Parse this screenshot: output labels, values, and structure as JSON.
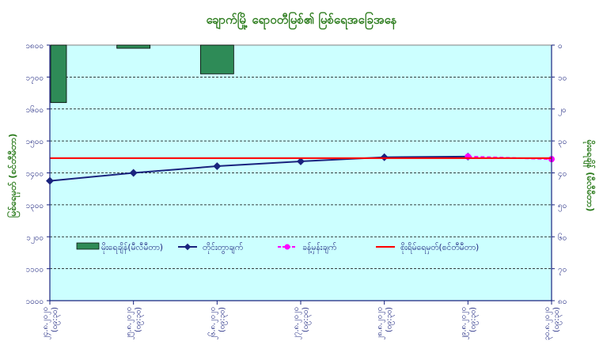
{
  "colors": {
    "plot_background": "#ccffff",
    "bar_fill": "#2e8b57",
    "line_series": "#1a237e",
    "forecast_series": "#ff00ff",
    "danger_level": "#ff0000",
    "title_text": "#2e7d1f"
  },
  "chart_data": {
    "type": "bar",
    "title": "ချောက်မြို့ ရောဝတီမြစ်၏ မြစ်ရေအခြေအနေ",
    "ylabel": "မြစ်ရေမှတ် (စင်တီမီတာ)",
    "y2label": "မိုးရေချိန် (မီလီမီတာ)",
    "ylim": [
      1000,
      1800
    ],
    "y2lim": [
      80,
      0
    ],
    "y2_inverted": true,
    "grid": "horizontal dashed",
    "legend_position": "center-left inside plot",
    "categories": [
      "၂၄.၈.၂၀၂၀ (၀၉:၃၀)",
      "၂၅.၈.၂၀၂၀ (၀၉:၃၀)",
      "၂၆.၈.၂၀၂၀ (၀၉:၃၀)",
      "၂၇.၈.၂၀၂၀ (၀၉:၃၀)",
      "၂၈.၈.၂၀၂၀ (၀၉:၃၀)",
      "၂၉.၈.၂၀၂၀ (၀၉:၃၀)",
      "၃၀.၈.၂၀၂၀ (၀၉:၃၀)"
    ],
    "yticks": [
      "၁၀၀၀",
      "၁၁၀၀",
      "၁၂၀၀",
      "၁၃၀၀",
      "၁၄၀၀",
      "၁၅၀၀",
      "၁၆၀၀",
      "၁၇၀၀",
      "၁၈၀၀"
    ],
    "y2ticks": [
      "၀",
      "၁၀",
      "၂၀",
      "၃၀",
      "၄၀",
      "၅၀",
      "၆၀",
      "၇၀",
      "၈၀"
    ],
    "series": [
      {
        "name": "မိုးရေချိန်(မီလီမီတာ)",
        "kind": "bar",
        "axis": "right",
        "points": [
          [
            0,
            18
          ],
          [
            1,
            1
          ],
          [
            2,
            9
          ]
        ]
      },
      {
        "name": "တိုင်းတွာချက်",
        "kind": "line",
        "axis": "left",
        "points": [
          [
            0,
            1375
          ],
          [
            1,
            1400
          ],
          [
            2,
            1421
          ],
          [
            3,
            1436
          ],
          [
            4,
            1449
          ],
          [
            5,
            1451
          ]
        ]
      },
      {
        "name": "ခန့်မှန်းချက်",
        "kind": "dashed-line",
        "axis": "left",
        "points": [
          [
            5,
            1451
          ],
          [
            6,
            1443
          ]
        ]
      },
      {
        "name": "စိုးရိမ်ရေမှတ်(စင်တီမီတာ)",
        "kind": "hline",
        "axis": "left",
        "points": [
          [
            0,
            1446
          ],
          [
            6,
            1446
          ]
        ]
      }
    ]
  }
}
